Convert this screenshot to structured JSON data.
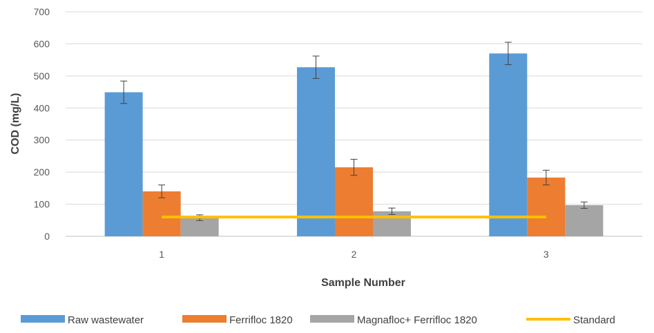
{
  "chart_data": {
    "type": "bar",
    "title": "",
    "xlabel": "Sample Number",
    "ylabel": "COD  (mg/L)",
    "categories": [
      "1",
      "2",
      "3"
    ],
    "ylim": [
      0,
      700
    ],
    "yticks": [
      0,
      100,
      200,
      300,
      400,
      500,
      600,
      700
    ],
    "grid": true,
    "legend_position": "bottom",
    "series": [
      {
        "name": "Raw wastewater",
        "color": "#5B9BD5",
        "values": [
          449,
          527,
          570
        ],
        "errors": [
          35,
          35,
          35
        ]
      },
      {
        "name": "Ferrifloc 1820",
        "color": "#ED7D31",
        "values": [
          140,
          215,
          183
        ],
        "errors": [
          20,
          25,
          23
        ]
      },
      {
        "name": "Magnafloc+ Ferrifloc 1820",
        "color": "#A5A5A5",
        "values": [
          58,
          78,
          97
        ],
        "errors": [
          9,
          10,
          10
        ]
      }
    ],
    "lines": [
      {
        "name": "Standard",
        "color": "#FFC000",
        "values": [
          60,
          60,
          60
        ]
      }
    ]
  }
}
